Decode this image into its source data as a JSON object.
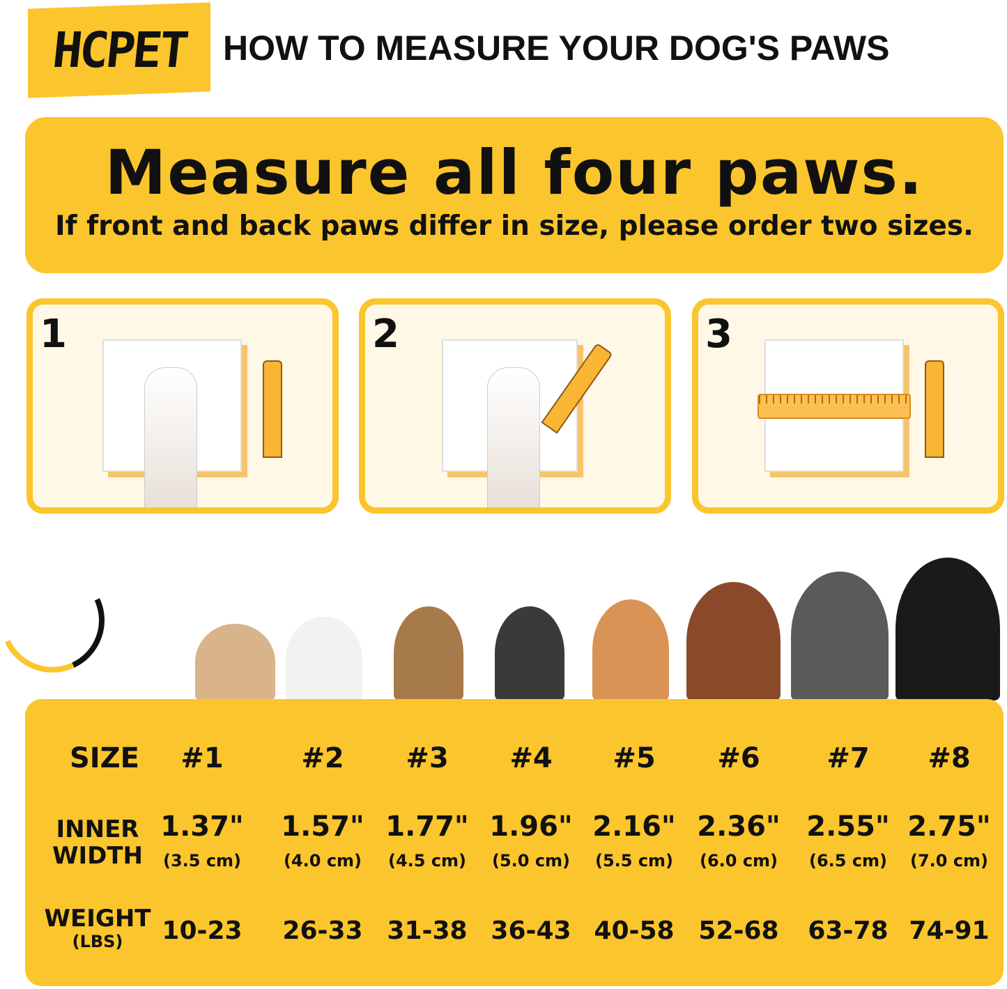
{
  "brand": "HCPET",
  "title": "HOW TO MEASURE YOUR DOG'S PAWS",
  "banner": {
    "heading": "Measure all four paws.",
    "subheading": "If front and back paws differ in size, please order two sizes."
  },
  "steps": [
    "1",
    "2",
    "3"
  ],
  "colors": {
    "accent": "#FBC52D",
    "panel": "#FFF8E6"
  },
  "table": {
    "size_label": "SIZE",
    "width_label": [
      "INNER",
      "WIDTH"
    ],
    "weight_label": [
      "WEIGHT",
      "(LBS)"
    ],
    "sizes": [
      "#1",
      "#2",
      "#3",
      "#4",
      "#5",
      "#6",
      "#7",
      "#8"
    ],
    "width_in": [
      "1.37\"",
      "1.57\"",
      "1.77\"",
      "1.96\"",
      "2.16\"",
      "2.36\"",
      "2.55\"",
      "2.75\""
    ],
    "width_cm": [
      "(3.5 cm)",
      "(4.0 cm)",
      "(4.5 cm)",
      "(5.0 cm)",
      "(5.5 cm)",
      "(6.0 cm)",
      "(6.5 cm)",
      "(7.0 cm)"
    ],
    "weight": [
      "10-23",
      "26-33",
      "31-38",
      "36-43",
      "40-58",
      "52-68",
      "63-78",
      "74-91"
    ]
  }
}
